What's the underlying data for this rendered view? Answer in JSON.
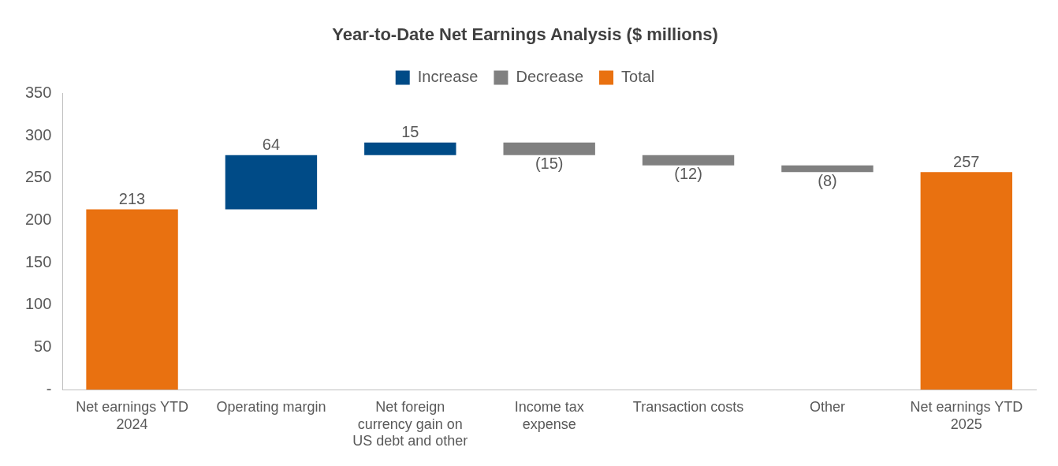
{
  "chart_data": {
    "type": "bar",
    "title": "Year-to-Date Net Earnings Analysis ($ millions)",
    "categories": [
      "Net earnings YTD 2024",
      "Operating margin",
      "Net foreign currency gain on US debt and other",
      "Income tax expense",
      "Transaction costs",
      "Other",
      "Net earnings YTD 2025"
    ],
    "series": [
      {
        "name": "Increase",
        "color": "#004b87",
        "values": [
          null,
          64,
          15,
          null,
          null,
          null,
          null
        ],
        "base": [
          null,
          213,
          277,
          null,
          null,
          null,
          null
        ],
        "value_labels": [
          null,
          "64",
          "15",
          null,
          null,
          null,
          null
        ]
      },
      {
        "name": "Decrease",
        "color": "#808080",
        "values": [
          null,
          null,
          null,
          -15,
          -12,
          -8,
          null
        ],
        "base": [
          null,
          null,
          null,
          292,
          277,
          265,
          null
        ],
        "value_labels": [
          null,
          null,
          null,
          "(15)",
          "(12)",
          "(8)",
          null
        ]
      },
      {
        "name": "Total",
        "color": "#e97110",
        "values": [
          213,
          null,
          null,
          null,
          null,
          null,
          257
        ],
        "base": [
          0,
          null,
          null,
          null,
          null,
          null,
          0
        ],
        "value_labels": [
          "213",
          null,
          null,
          null,
          null,
          null,
          "257"
        ]
      }
    ],
    "ylim": [
      0,
      350
    ],
    "yticks": [
      {
        "value": 0,
        "label": "-"
      },
      50,
      100,
      150,
      200,
      250,
      300,
      350
    ],
    "grid": false,
    "legend": "top"
  }
}
